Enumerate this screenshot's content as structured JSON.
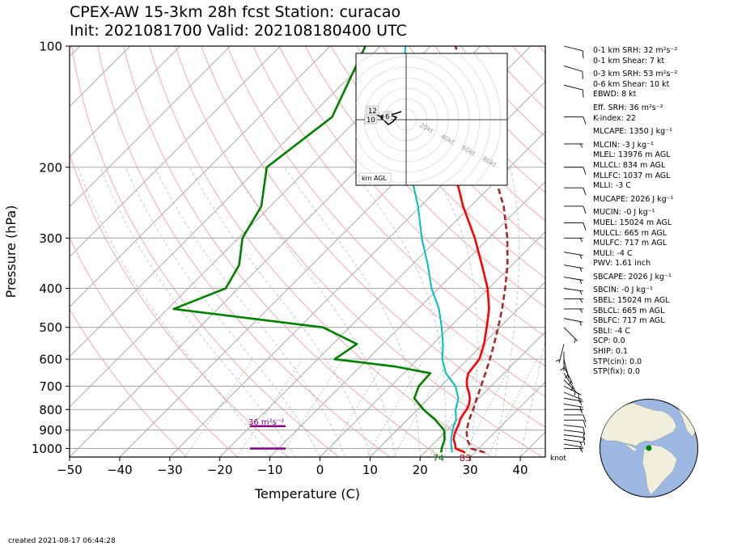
{
  "title": {
    "line1": "CPEX-AW 15-3km  28h fcst  Station: curacao",
    "line2": "Init: 2021081700  Valid: 202108180400 UTC"
  },
  "created": "created 2021-08-17 06:44:28",
  "stats": [
    "0-1 km SRH: 32 m²s⁻²",
    "0-1 km Shear: 7 kt",
    "0-3 km SRH: 53 m²s⁻²",
    "0-6 km Shear: 10 kt",
    "EBWD: 8 kt",
    "Eff. SRH: 36 m²s⁻²",
    "K-index: 22",
    "MLCAPE: 1350 J kg⁻¹",
    "MLCIN: -3 J kg⁻¹",
    "MLEL: 13976 m AGL",
    "MLLCL: 834 m AGL",
    "MLLFC: 1037 m AGL",
    "MLLI: -3 C",
    "MUCAPE: 2026 J kg⁻¹",
    "MUCIN: -0 J kg⁻¹",
    "MUEL: 15024 m AGL",
    "MULCL: 665 m AGL",
    "MULFC: 717 m AGL",
    "MULI: -4 C",
    "PWV: 1.61 inch",
    "SBCAPE: 2026 J kg⁻¹",
    "SBCIN: -0 J kg⁻¹",
    "SBEL: 15024 m AGL",
    "SBLCL: 665 m AGL",
    "SBLFC: 717 m AGL",
    "SBLI: -4 C",
    "SCP: 0.0",
    "SHIP: 0.1",
    "STP(cin): 0.0",
    "STP(fix): 0.0"
  ],
  "hodograph": {
    "ring_labels": [
      "20kt",
      "40kt",
      "60kt",
      "80kt"
    ],
    "height_labels": [
      "12",
      "10",
      "6"
    ],
    "legend": "km AGL"
  },
  "srh_label": "36 m²s⁻²",
  "surface_labels": {
    "dewpoint": "74",
    "temperature": "83"
  },
  "barb_units": "knot",
  "chart_data": {
    "type": "skew-t",
    "xlabel": "Temperature (C)",
    "ylabel": "Pressure (hPa)",
    "x_ticks": [
      -50,
      -40,
      -30,
      -20,
      -10,
      0,
      10,
      20,
      30,
      40
    ],
    "y_ticks": [
      100,
      200,
      300,
      400,
      500,
      600,
      700,
      800,
      900,
      1000
    ],
    "xlim": [
      -50,
      45
    ],
    "ylim": [
      1050,
      100
    ],
    "series": [
      {
        "name": "temperature",
        "color": "#ff0000",
        "points": [
          [
            1023,
            28.1
          ],
          [
            1000,
            25.4
          ],
          [
            975,
            24.4
          ],
          [
            950,
            23.2
          ],
          [
            925,
            22.4
          ],
          [
            900,
            21.8
          ],
          [
            875,
            21.3
          ],
          [
            850,
            20.6
          ],
          [
            825,
            20.1
          ],
          [
            800,
            19.8
          ],
          [
            775,
            19.2
          ],
          [
            750,
            18.2
          ],
          [
            725,
            16.8
          ],
          [
            700,
            15.2
          ],
          [
            675,
            13.9
          ],
          [
            650,
            12.9
          ],
          [
            625,
            12.6
          ],
          [
            600,
            12.3
          ],
          [
            550,
            10.2
          ],
          [
            500,
            7.4
          ],
          [
            450,
            4.2
          ],
          [
            400,
            -0.2
          ],
          [
            350,
            -6.0
          ],
          [
            300,
            -12.8
          ],
          [
            250,
            -21.5
          ],
          [
            200,
            -31.2
          ],
          [
            150,
            -45.8
          ]
        ]
      },
      {
        "name": "dewpoint",
        "color": "#008000",
        "points": [
          [
            1023,
            23.3
          ],
          [
            1000,
            22.6
          ],
          [
            950,
            21.4
          ],
          [
            900,
            19.4
          ],
          [
            850,
            15.7
          ],
          [
            800,
            11.2
          ],
          [
            750,
            7.1
          ],
          [
            700,
            5.6
          ],
          [
            650,
            5.3
          ],
          [
            625,
            -3.3
          ],
          [
            600,
            -16.6
          ],
          [
            550,
            -15.2
          ],
          [
            500,
            -25.3
          ],
          [
            450,
            -58.8
          ],
          [
            400,
            -52.5
          ],
          [
            350,
            -54.5
          ],
          [
            300,
            -59.2
          ],
          [
            250,
            -61.8
          ],
          [
            200,
            -68.5
          ],
          [
            150,
            -65.5
          ],
          [
            100,
            -73.0
          ]
        ]
      },
      {
        "name": "virtual temperature",
        "color": "#00bfbf",
        "points": [
          [
            1023,
            25.5
          ],
          [
            1000,
            24.6
          ],
          [
            975,
            23.6
          ],
          [
            950,
            22.7
          ],
          [
            925,
            21.9
          ],
          [
            900,
            21.1
          ],
          [
            875,
            20.4
          ],
          [
            850,
            19.8
          ],
          [
            800,
            17.6
          ],
          [
            750,
            15.9
          ],
          [
            700,
            12.9
          ],
          [
            650,
            8.4
          ],
          [
            600,
            4.9
          ],
          [
            550,
            2.0
          ],
          [
            500,
            -1.6
          ],
          [
            450,
            -5.8
          ],
          [
            400,
            -11.4
          ],
          [
            350,
            -16.8
          ],
          [
            300,
            -23.4
          ],
          [
            250,
            -30.5
          ],
          [
            200,
            -40.0
          ],
          [
            150,
            -52.0
          ],
          [
            100,
            -65.0
          ]
        ]
      },
      {
        "name": "parcel",
        "color": "#a52a2a",
        "points": [
          [
            1023,
            32.0
          ],
          [
            1000,
            28.5
          ],
          [
            950,
            25.9
          ],
          [
            900,
            23.9
          ],
          [
            850,
            22.4
          ],
          [
            800,
            21.1
          ],
          [
            750,
            19.6
          ],
          [
            700,
            18.0
          ],
          [
            650,
            16.3
          ],
          [
            600,
            14.4
          ],
          [
            550,
            12.2
          ],
          [
            500,
            9.7
          ],
          [
            450,
            6.8
          ],
          [
            400,
            3.3
          ],
          [
            350,
            -0.9
          ],
          [
            300,
            -6.3
          ],
          [
            250,
            -13.4
          ],
          [
            200,
            -23.5
          ],
          [
            150,
            -37.6
          ],
          [
            100,
            -55.0
          ]
        ]
      }
    ],
    "srh_bar": {
      "pressures": [
        1000,
        880
      ]
    },
    "wind_barbs": [
      {
        "p": 1000,
        "u": -4,
        "v": 0
      },
      {
        "p": 975,
        "u": -6,
        "v": 1
      },
      {
        "p": 950,
        "u": -7,
        "v": 1
      },
      {
        "p": 925,
        "u": -8,
        "v": 1
      },
      {
        "p": 900,
        "u": -8,
        "v": 1
      },
      {
        "p": 875,
        "u": -9,
        "v": 1
      },
      {
        "p": 850,
        "u": -8,
        "v": 0
      },
      {
        "p": 825,
        "u": -8,
        "v": 0
      },
      {
        "p": 800,
        "u": -7,
        "v": 0
      },
      {
        "p": 775,
        "u": -6,
        "v": 1
      },
      {
        "p": 750,
        "u": -6,
        "v": 1
      },
      {
        "p": 725,
        "u": -5,
        "v": 2
      },
      {
        "p": 700,
        "u": -4,
        "v": 2
      },
      {
        "p": 675,
        "u": -3,
        "v": 3
      },
      {
        "p": 650,
        "u": -2,
        "v": 3
      },
      {
        "p": 625,
        "u": -2,
        "v": 4
      },
      {
        "p": 600,
        "u": -1,
        "v": 4
      },
      {
        "p": 575,
        "u": 0,
        "v": 4
      },
      {
        "p": 550,
        "u": 1,
        "v": 4
      },
      {
        "p": 500,
        "u": -3,
        "v": 3
      },
      {
        "p": 475,
        "u": -5,
        "v": 1
      },
      {
        "p": 450,
        "u": -6,
        "v": 0
      },
      {
        "p": 425,
        "u": -7,
        "v": 0
      },
      {
        "p": 400,
        "u": -7,
        "v": 1
      },
      {
        "p": 375,
        "u": -6,
        "v": 1
      },
      {
        "p": 350,
        "u": -6,
        "v": 1
      },
      {
        "p": 325,
        "u": -6,
        "v": 1
      },
      {
        "p": 300,
        "u": -7,
        "v": 0
      },
      {
        "p": 275,
        "u": -8,
        "v": 0
      },
      {
        "p": 250,
        "u": -8,
        "v": 0
      },
      {
        "p": 225,
        "u": -8,
        "v": 0
      },
      {
        "p": 200,
        "u": -8,
        "v": 0
      },
      {
        "p": 175,
        "u": -7,
        "v": 0
      },
      {
        "p": 150,
        "u": -8,
        "v": 0
      },
      {
        "p": 125,
        "u": -8,
        "v": 2
      },
      {
        "p": 112,
        "u": -10,
        "v": 3
      },
      {
        "p": 100,
        "u": -8,
        "v": 2
      }
    ]
  }
}
